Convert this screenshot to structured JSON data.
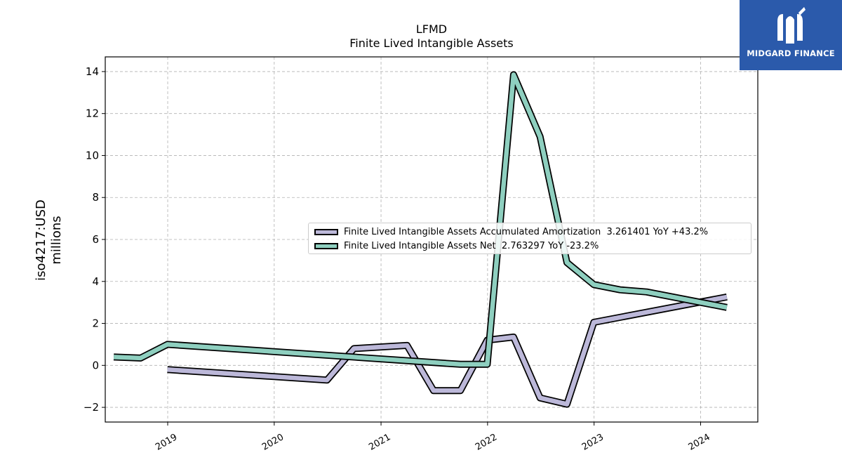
{
  "chart_data": {
    "type": "line",
    "title": "LFMD",
    "subtitle": "Finite Lived Intangible Assets",
    "xlabel": "",
    "ylabel": "iso4217:USD\nmillions",
    "xlim": [
      "2018-06-01",
      "2024-07-15"
    ],
    "ylim": [
      -2.7,
      14.7
    ],
    "y_ticks": [
      -2,
      0,
      2,
      4,
      6,
      8,
      10,
      12,
      14
    ],
    "x_ticks": [
      {
        "label": "2019",
        "date": "2019-01-01"
      },
      {
        "label": "2020",
        "date": "2020-01-01"
      },
      {
        "label": "2021",
        "date": "2021-01-01"
      },
      {
        "label": "2022",
        "date": "2022-01-01"
      },
      {
        "label": "2023",
        "date": "2023-01-01"
      },
      {
        "label": "2024",
        "date": "2024-01-01"
      }
    ],
    "grid": true,
    "legend_position": "center-right",
    "series": [
      {
        "name": "Finite Lived Intangible Assets Accumulated Amortization  3.261401 YoY +43.2%",
        "color": "#bcb8d9",
        "points": [
          {
            "x": "2018-12-31",
            "y": -0.2
          },
          {
            "x": "2020-06-30",
            "y": -0.7
          },
          {
            "x": "2020-09-30",
            "y": 0.8
          },
          {
            "x": "2021-03-31",
            "y": 0.95
          },
          {
            "x": "2021-06-30",
            "y": -1.2
          },
          {
            "x": "2021-09-30",
            "y": -1.2
          },
          {
            "x": "2021-12-31",
            "y": 1.2
          },
          {
            "x": "2022-03-31",
            "y": 1.35
          },
          {
            "x": "2022-06-30",
            "y": -1.55
          },
          {
            "x": "2022-09-30",
            "y": -1.85
          },
          {
            "x": "2022-12-31",
            "y": 2.05
          },
          {
            "x": "2024-03-31",
            "y": 3.26
          }
        ]
      },
      {
        "name": "Finite Lived Intangible Assets Net  2.763297 YoY -23.2%",
        "color": "#8ecfbf",
        "points": [
          {
            "x": "2018-06-30",
            "y": 0.4
          },
          {
            "x": "2018-09-30",
            "y": 0.35
          },
          {
            "x": "2018-12-31",
            "y": 1.0
          },
          {
            "x": "2021-09-30",
            "y": 0.05
          },
          {
            "x": "2021-12-31",
            "y": 0.05
          },
          {
            "x": "2022-03-31",
            "y": 13.85
          },
          {
            "x": "2022-06-30",
            "y": 10.9
          },
          {
            "x": "2022-09-30",
            "y": 4.9
          },
          {
            "x": "2022-12-31",
            "y": 3.85
          },
          {
            "x": "2023-03-31",
            "y": 3.6
          },
          {
            "x": "2023-06-30",
            "y": 3.5
          },
          {
            "x": "2024-03-31",
            "y": 2.76
          }
        ]
      }
    ]
  },
  "branding": {
    "logo_text": "MIDGARD FINANCE",
    "logo_color": "#2b5aab"
  }
}
